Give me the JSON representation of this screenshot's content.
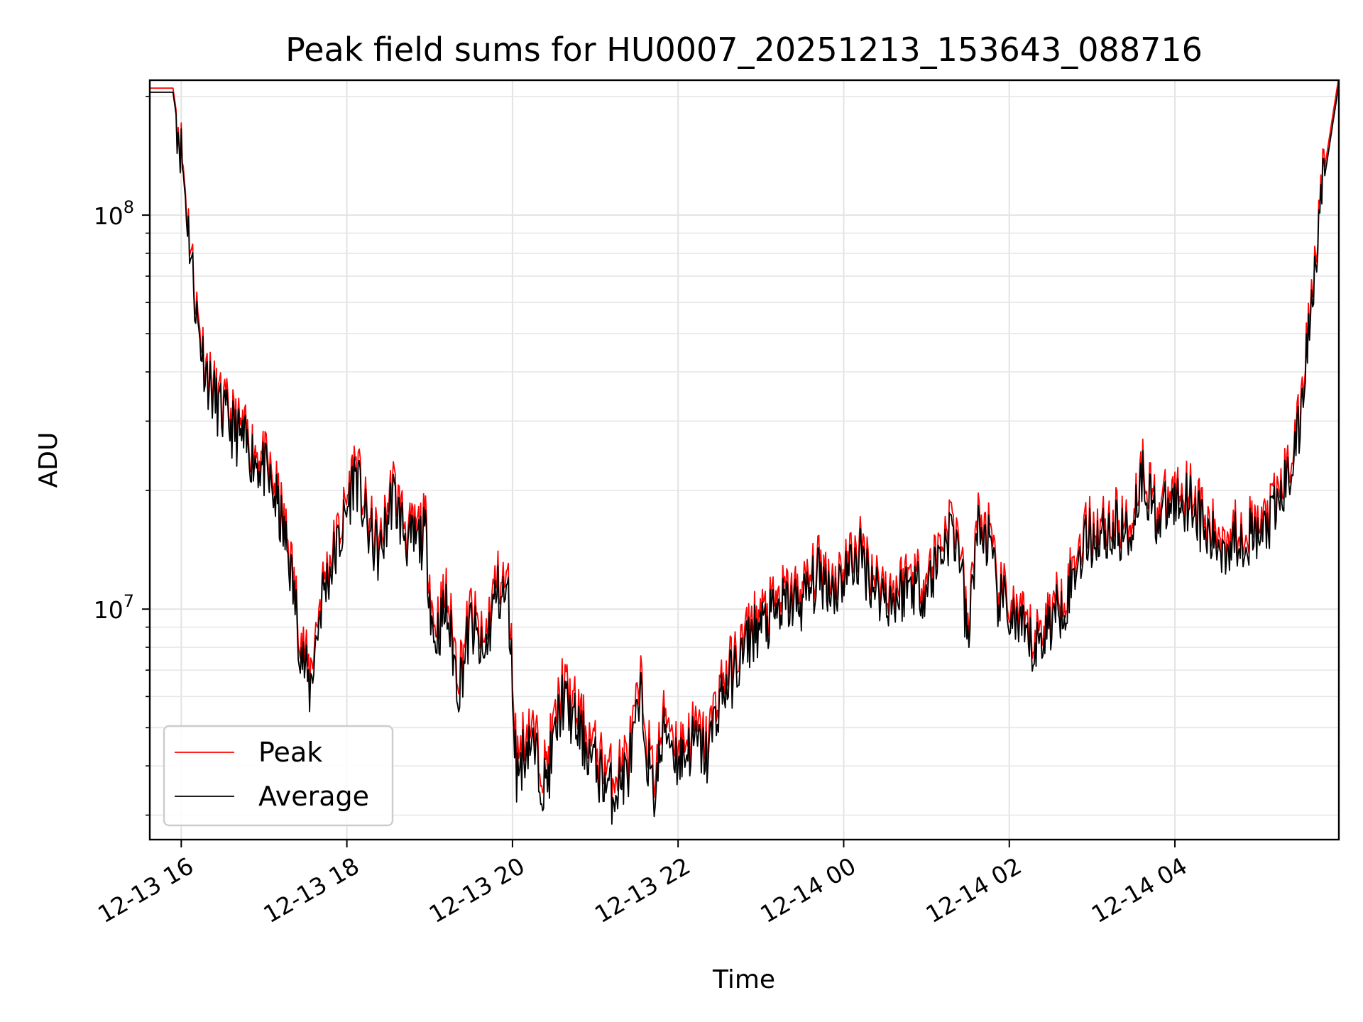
{
  "chart_data": {
    "type": "line",
    "title": "Peak field sums for HU0007_20251213_153643_088716",
    "xlabel": "Time",
    "ylabel": "ADU",
    "yscale": "log",
    "x_unit": "hours since 2025-12-13 00:00",
    "xlim": [
      15.62,
      29.98
    ],
    "ylim": [
      2600000.0,
      220000000.0
    ],
    "grid": true,
    "legend_position": "lower-left",
    "x_ticks": [
      {
        "value": 16,
        "label": "12-13 16"
      },
      {
        "value": 18,
        "label": "12-13 18"
      },
      {
        "value": 20,
        "label": "12-13 20"
      },
      {
        "value": 22,
        "label": "12-13 22"
      },
      {
        "value": 24,
        "label": "12-14 00"
      },
      {
        "value": 26,
        "label": "12-14 02"
      },
      {
        "value": 28,
        "label": "12-14 04"
      }
    ],
    "y_ticks": [
      {
        "value": 10000000,
        "base": "10",
        "exp": "7"
      },
      {
        "value": 100000000,
        "base": "10",
        "exp": "8"
      }
    ],
    "series": [
      {
        "name": "Peak",
        "color": "#ff0000",
        "x": [
          15.62,
          15.9,
          16.0,
          16.1,
          16.2,
          16.3,
          16.4,
          16.5,
          16.6,
          16.8,
          17.0,
          17.15,
          17.3,
          17.45,
          17.55,
          17.7,
          17.95,
          18.1,
          18.25,
          18.4,
          18.55,
          18.75,
          18.95,
          19.05,
          19.2,
          19.35,
          19.5,
          19.65,
          19.8,
          19.95,
          20.05,
          20.2,
          20.4,
          20.6,
          20.8,
          21.0,
          21.2,
          21.4,
          21.55,
          21.7,
          21.85,
          22.0,
          22.2,
          22.35,
          22.5,
          22.7,
          22.9,
          23.1,
          23.3,
          23.5,
          23.7,
          23.9,
          24.05,
          24.2,
          24.4,
          24.6,
          24.8,
          25.0,
          25.2,
          25.3,
          25.4,
          25.5,
          25.6,
          25.75,
          25.85,
          26.0,
          26.15,
          26.3,
          26.5,
          26.7,
          26.9,
          27.1,
          27.3,
          27.45,
          27.6,
          27.8,
          28.0,
          28.2,
          28.4,
          28.6,
          28.8,
          29.0,
          29.2,
          29.35,
          29.5,
          29.6,
          29.75,
          29.98
        ],
        "y": [
          210000000,
          210000000,
          150000000,
          90000000,
          55000000,
          42000000,
          36000000,
          33000000,
          31000000,
          27000000,
          24000000,
          20000000,
          14500000,
          8500000,
          6800000,
          11500000,
          17000000,
          24000000,
          17000000,
          14500000,
          21000000,
          15500000,
          16500000,
          9000000,
          11000000,
          7000000,
          10000000,
          8000000,
          12000000,
          11500000,
          4200000,
          5200000,
          3900000,
          6500000,
          5400000,
          4400000,
          3800000,
          4300000,
          6400000,
          3700000,
          5600000,
          4500000,
          5000000,
          4600000,
          6400000,
          7600000,
          9400000,
          10000000,
          11000000,
          11200000,
          13000000,
          12000000,
          13500000,
          14500000,
          12000000,
          11200000,
          12500000,
          12000000,
          15500000,
          17000000,
          15000000,
          8500000,
          17000000,
          16000000,
          11500000,
          10500000,
          9300000,
          8400000,
          10000000,
          11500000,
          16000000,
          16500000,
          17000000,
          16200000,
          23500000,
          18000000,
          20000000,
          20500000,
          16000000,
          15500000,
          16500000,
          16000000,
          18500000,
          22500000,
          30000000,
          50000000,
          110000000,
          225000000
        ]
      },
      {
        "name": "Average",
        "color": "#000000",
        "x": [
          15.62,
          15.9,
          16.0,
          16.1,
          16.2,
          16.3,
          16.4,
          16.5,
          16.6,
          16.8,
          17.0,
          17.15,
          17.3,
          17.45,
          17.55,
          17.7,
          17.95,
          18.1,
          18.25,
          18.4,
          18.55,
          18.75,
          18.95,
          19.05,
          19.2,
          19.35,
          19.5,
          19.65,
          19.8,
          19.95,
          20.05,
          20.2,
          20.4,
          20.6,
          20.8,
          21.0,
          21.2,
          21.4,
          21.55,
          21.7,
          21.85,
          22.0,
          22.2,
          22.35,
          22.5,
          22.7,
          22.9,
          23.1,
          23.3,
          23.5,
          23.7,
          23.9,
          24.05,
          24.2,
          24.4,
          24.6,
          24.8,
          25.0,
          25.2,
          25.3,
          25.4,
          25.5,
          25.6,
          25.75,
          25.85,
          26.0,
          26.15,
          26.3,
          26.5,
          26.7,
          26.9,
          27.1,
          27.3,
          27.45,
          27.6,
          27.8,
          28.0,
          28.2,
          28.4,
          28.6,
          28.8,
          29.0,
          29.2,
          29.35,
          29.5,
          29.6,
          29.75,
          29.98
        ],
        "y": [
          205000000,
          205000000,
          145000000,
          86000000,
          52000000,
          40000000,
          34000000,
          31000000,
          29000000,
          25500000,
          22500000,
          18500000,
          13500000,
          7800000,
          6200000,
          10800000,
          15800000,
          22500000,
          15800000,
          13500000,
          19500000,
          14500000,
          15200000,
          8200000,
          10000000,
          6300000,
          9200000,
          7300000,
          11000000,
          10600000,
          3800000,
          4700000,
          3500000,
          5900000,
          4900000,
          4000000,
          3400000,
          3900000,
          5800000,
          3300000,
          5100000,
          4100000,
          4600000,
          4200000,
          5900000,
          7000000,
          8700000,
          9300000,
          10200000,
          10400000,
          12100000,
          11200000,
          12600000,
          13500000,
          11200000,
          10400000,
          11600000,
          11200000,
          14400000,
          15800000,
          14000000,
          7900000,
          15800000,
          14900000,
          10700000,
          9800000,
          8600000,
          7800000,
          9300000,
          10700000,
          14900000,
          15400000,
          15800000,
          15100000,
          22000000,
          16800000,
          18700000,
          19100000,
          14900000,
          14400000,
          15400000,
          14900000,
          17200000,
          21000000,
          28000000,
          47000000,
          104000000,
          215000000
        ]
      }
    ]
  }
}
